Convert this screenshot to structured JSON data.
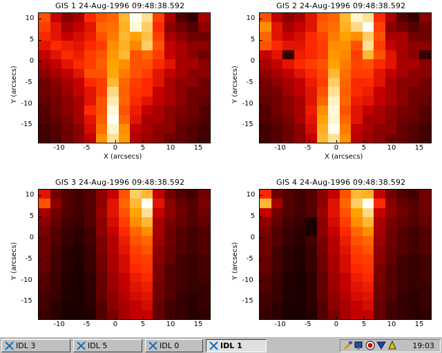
{
  "taskbar": {
    "buttons": [
      {
        "label": "IDL 3",
        "active": false
      },
      {
        "label": "IDL 5",
        "active": false
      },
      {
        "label": "IDL 0",
        "active": false
      },
      {
        "label": "IDL 1",
        "active": true
      }
    ],
    "clock": "19:03"
  },
  "panels": [
    {
      "title": "GIS 1 24-Aug-1996 09:48:38.592",
      "xlabel": "X (arcsecs)",
      "ylabel": "Y (arcsecs)",
      "xticks": [
        "-10",
        "-5",
        "0",
        "5",
        "10",
        "15"
      ],
      "yticks": [
        "10",
        "5",
        "0",
        "-5",
        "-10",
        "-15"
      ],
      "show_xlabel": true,
      "grid": [
        [
          0.55,
          0.35,
          0.25,
          0.3,
          0.45,
          0.55,
          0.6,
          0.8,
          0.98,
          0.9,
          0.5,
          0.3,
          0.15,
          0.08,
          0.3
        ],
        [
          0.5,
          0.4,
          0.3,
          0.35,
          0.4,
          0.6,
          0.62,
          0.78,
          0.96,
          0.85,
          0.45,
          0.25,
          0.2,
          0.15,
          0.25
        ],
        [
          0.45,
          0.4,
          0.35,
          0.38,
          0.42,
          0.55,
          0.65,
          0.8,
          0.75,
          0.82,
          0.5,
          0.3,
          0.25,
          0.2,
          0.2
        ],
        [
          0.4,
          0.45,
          0.42,
          0.4,
          0.45,
          0.5,
          0.7,
          0.78,
          0.68,
          0.85,
          0.55,
          0.35,
          0.3,
          0.25,
          0.25
        ],
        [
          0.35,
          0.4,
          0.45,
          0.42,
          0.5,
          0.55,
          0.72,
          0.8,
          0.55,
          0.6,
          0.5,
          0.35,
          0.3,
          0.25,
          0.2
        ],
        [
          0.3,
          0.35,
          0.4,
          0.45,
          0.5,
          0.58,
          0.75,
          0.7,
          0.55,
          0.55,
          0.45,
          0.4,
          0.3,
          0.3,
          0.25
        ],
        [
          0.25,
          0.3,
          0.35,
          0.4,
          0.55,
          0.55,
          0.76,
          0.65,
          0.55,
          0.5,
          0.4,
          0.35,
          0.3,
          0.25,
          0.25
        ],
        [
          0.2,
          0.25,
          0.3,
          0.35,
          0.45,
          0.5,
          0.8,
          0.6,
          0.5,
          0.45,
          0.4,
          0.3,
          0.25,
          0.25,
          0.2
        ],
        [
          0.2,
          0.22,
          0.28,
          0.35,
          0.4,
          0.5,
          0.88,
          0.58,
          0.48,
          0.45,
          0.35,
          0.3,
          0.25,
          0.2,
          0.2
        ],
        [
          0.18,
          0.2,
          0.25,
          0.3,
          0.4,
          0.55,
          0.92,
          0.6,
          0.45,
          0.4,
          0.35,
          0.3,
          0.25,
          0.2,
          0.18
        ],
        [
          0.15,
          0.2,
          0.25,
          0.3,
          0.45,
          0.55,
          0.96,
          0.55,
          0.42,
          0.35,
          0.3,
          0.25,
          0.22,
          0.2,
          0.15
        ],
        [
          0.15,
          0.18,
          0.22,
          0.3,
          0.4,
          0.58,
          0.99,
          0.6,
          0.4,
          0.3,
          0.3,
          0.25,
          0.2,
          0.18,
          0.15
        ],
        [
          0.12,
          0.15,
          0.2,
          0.25,
          0.38,
          0.62,
          0.95,
          0.7,
          0.35,
          0.3,
          0.25,
          0.25,
          0.18,
          0.15,
          0.12
        ],
        [
          0.12,
          0.15,
          0.2,
          0.25,
          0.35,
          0.7,
          0.9,
          0.72,
          0.32,
          0.28,
          0.25,
          0.2,
          0.18,
          0.15,
          0.12
        ]
      ]
    },
    {
      "title": "GIS 2 24-Aug-1996 09:48:38.592",
      "xlabel": "X (arcsecs)",
      "ylabel": "Y (arcsecs)",
      "xticks": [
        "-10",
        "-5",
        "0",
        "5",
        "10",
        "15"
      ],
      "yticks": [
        "10",
        "5",
        "0",
        "-5",
        "-10",
        "-15"
      ],
      "show_xlabel": true,
      "grid": [
        [
          0.55,
          0.35,
          0.25,
          0.3,
          0.4,
          0.55,
          0.6,
          0.8,
          0.95,
          0.9,
          0.45,
          0.3,
          0.15,
          0.1,
          0.25
        ],
        [
          0.7,
          0.4,
          0.3,
          0.35,
          0.4,
          0.58,
          0.62,
          0.78,
          0.88,
          0.99,
          0.5,
          0.25,
          0.2,
          0.15,
          0.2
        ],
        [
          0.6,
          0.4,
          0.35,
          0.38,
          0.45,
          0.52,
          0.65,
          0.75,
          0.7,
          0.85,
          0.55,
          0.3,
          0.3,
          0.2,
          0.2
        ],
        [
          0.55,
          0.45,
          0.4,
          0.4,
          0.45,
          0.5,
          0.7,
          0.7,
          0.55,
          0.9,
          0.5,
          0.35,
          0.3,
          0.25,
          0.25
        ],
        [
          0.35,
          0.4,
          0.1,
          0.42,
          0.45,
          0.5,
          0.72,
          0.68,
          0.5,
          0.8,
          0.55,
          0.4,
          0.3,
          0.25,
          0.1
        ],
        [
          0.3,
          0.35,
          0.4,
          0.45,
          0.5,
          0.55,
          0.75,
          0.65,
          0.52,
          0.55,
          0.45,
          0.4,
          0.3,
          0.3,
          0.25
        ],
        [
          0.25,
          0.3,
          0.35,
          0.4,
          0.45,
          0.52,
          0.8,
          0.62,
          0.5,
          0.5,
          0.4,
          0.35,
          0.3,
          0.25,
          0.25
        ],
        [
          0.22,
          0.25,
          0.3,
          0.35,
          0.42,
          0.5,
          0.85,
          0.6,
          0.45,
          0.45,
          0.4,
          0.3,
          0.25,
          0.25,
          0.2
        ],
        [
          0.2,
          0.22,
          0.28,
          0.35,
          0.4,
          0.55,
          0.9,
          0.58,
          0.45,
          0.42,
          0.35,
          0.3,
          0.25,
          0.2,
          0.2
        ],
        [
          0.18,
          0.2,
          0.25,
          0.3,
          0.4,
          0.6,
          0.94,
          0.6,
          0.42,
          0.4,
          0.35,
          0.3,
          0.25,
          0.2,
          0.18
        ],
        [
          0.15,
          0.2,
          0.25,
          0.3,
          0.42,
          0.7,
          0.96,
          0.55,
          0.4,
          0.35,
          0.3,
          0.25,
          0.22,
          0.2,
          0.15
        ],
        [
          0.15,
          0.18,
          0.22,
          0.3,
          0.4,
          0.75,
          0.95,
          0.6,
          0.4,
          0.3,
          0.3,
          0.25,
          0.2,
          0.18,
          0.15
        ],
        [
          0.12,
          0.15,
          0.2,
          0.25,
          0.38,
          0.78,
          0.98,
          0.65,
          0.35,
          0.3,
          0.25,
          0.25,
          0.18,
          0.15,
          0.12
        ],
        [
          0.12,
          0.15,
          0.2,
          0.25,
          0.35,
          0.8,
          0.9,
          0.7,
          0.32,
          0.28,
          0.25,
          0.2,
          0.18,
          0.15,
          0.12
        ]
      ]
    },
    {
      "title": "GIS 3 24-Aug-1996 09:48:38.592",
      "xlabel": "",
      "ylabel": "Y (arcsecs)",
      "xticks": [
        "-10",
        "-5",
        "0",
        "5",
        "10",
        "15"
      ],
      "yticks": [
        "10",
        "5",
        "0",
        "-5",
        "-10",
        "-15"
      ],
      "show_xlabel": false,
      "grid": [
        [
          0.4,
          0.2,
          0.15,
          0.12,
          0.15,
          0.25,
          0.35,
          0.55,
          0.85,
          0.8,
          0.35,
          0.2,
          0.15,
          0.12,
          0.2
        ],
        [
          0.55,
          0.25,
          0.15,
          0.12,
          0.15,
          0.25,
          0.4,
          0.6,
          0.8,
          0.99,
          0.4,
          0.25,
          0.18,
          0.15,
          0.22
        ],
        [
          0.3,
          0.2,
          0.15,
          0.12,
          0.15,
          0.28,
          0.4,
          0.55,
          0.75,
          0.9,
          0.35,
          0.25,
          0.2,
          0.15,
          0.2
        ],
        [
          0.25,
          0.18,
          0.12,
          0.1,
          0.15,
          0.25,
          0.38,
          0.5,
          0.7,
          0.8,
          0.3,
          0.22,
          0.18,
          0.15,
          0.18
        ],
        [
          0.22,
          0.15,
          0.1,
          0.08,
          0.12,
          0.25,
          0.35,
          0.45,
          0.6,
          0.7,
          0.3,
          0.2,
          0.15,
          0.12,
          0.15
        ],
        [
          0.2,
          0.15,
          0.1,
          0.08,
          0.12,
          0.22,
          0.32,
          0.42,
          0.55,
          0.6,
          0.28,
          0.2,
          0.15,
          0.12,
          0.15
        ],
        [
          0.2,
          0.12,
          0.08,
          0.06,
          0.1,
          0.22,
          0.32,
          0.4,
          0.5,
          0.55,
          0.25,
          0.18,
          0.15,
          0.12,
          0.15
        ],
        [
          0.18,
          0.12,
          0.08,
          0.06,
          0.1,
          0.2,
          0.3,
          0.38,
          0.48,
          0.5,
          0.25,
          0.18,
          0.12,
          0.1,
          0.12
        ],
        [
          0.18,
          0.12,
          0.08,
          0.05,
          0.1,
          0.2,
          0.3,
          0.38,
          0.45,
          0.48,
          0.22,
          0.15,
          0.12,
          0.1,
          0.12
        ],
        [
          0.15,
          0.1,
          0.06,
          0.05,
          0.08,
          0.18,
          0.28,
          0.35,
          0.42,
          0.45,
          0.22,
          0.15,
          0.12,
          0.1,
          0.12
        ],
        [
          0.15,
          0.1,
          0.06,
          0.05,
          0.08,
          0.18,
          0.28,
          0.35,
          0.4,
          0.42,
          0.2,
          0.15,
          0.12,
          0.1,
          0.1
        ],
        [
          0.12,
          0.1,
          0.06,
          0.05,
          0.08,
          0.18,
          0.25,
          0.32,
          0.38,
          0.4,
          0.2,
          0.15,
          0.1,
          0.08,
          0.1
        ],
        [
          0.12,
          0.08,
          0.05,
          0.05,
          0.08,
          0.15,
          0.25,
          0.3,
          0.35,
          0.38,
          0.18,
          0.12,
          0.1,
          0.08,
          0.1
        ],
        [
          0.1,
          0.08,
          0.05,
          0.05,
          0.06,
          0.15,
          0.22,
          0.3,
          0.35,
          0.35,
          0.18,
          0.12,
          0.1,
          0.08,
          0.08
        ]
      ]
    },
    {
      "title": "GIS 4 24-Aug-1996 09:48:38.592",
      "xlabel": "",
      "ylabel": "Y (arcsecs)",
      "xticks": [
        "-10",
        "-5",
        "0",
        "5",
        "10",
        "15"
      ],
      "yticks": [
        "10",
        "5",
        "0",
        "-5",
        "-10",
        "-15"
      ],
      "show_xlabel": false,
      "grid": [
        [
          0.45,
          0.2,
          0.15,
          0.12,
          0.15,
          0.25,
          0.35,
          0.55,
          0.8,
          0.78,
          0.35,
          0.2,
          0.15,
          0.12,
          0.2
        ],
        [
          0.8,
          0.3,
          0.15,
          0.12,
          0.15,
          0.25,
          0.4,
          0.6,
          0.85,
          0.99,
          0.45,
          0.25,
          0.18,
          0.15,
          0.2
        ],
        [
          0.35,
          0.2,
          0.15,
          0.12,
          0.15,
          0.28,
          0.4,
          0.55,
          0.75,
          0.88,
          0.35,
          0.25,
          0.2,
          0.15,
          0.2
        ],
        [
          0.25,
          0.18,
          0.12,
          0.1,
          0.05,
          0.25,
          0.38,
          0.5,
          0.7,
          0.8,
          0.3,
          0.22,
          0.18,
          0.15,
          0.18
        ],
        [
          0.22,
          0.15,
          0.1,
          0.08,
          0.05,
          0.25,
          0.35,
          0.45,
          0.6,
          0.7,
          0.3,
          0.2,
          0.15,
          0.12,
          0.15
        ],
        [
          0.2,
          0.15,
          0.1,
          0.08,
          0.12,
          0.22,
          0.32,
          0.42,
          0.55,
          0.6,
          0.28,
          0.2,
          0.15,
          0.12,
          0.15
        ],
        [
          0.2,
          0.12,
          0.08,
          0.06,
          0.1,
          0.22,
          0.32,
          0.4,
          0.5,
          0.55,
          0.25,
          0.18,
          0.15,
          0.12,
          0.15
        ],
        [
          0.18,
          0.12,
          0.08,
          0.06,
          0.1,
          0.2,
          0.3,
          0.38,
          0.48,
          0.5,
          0.25,
          0.18,
          0.12,
          0.1,
          0.12
        ],
        [
          0.18,
          0.12,
          0.08,
          0.05,
          0.1,
          0.2,
          0.3,
          0.38,
          0.45,
          0.48,
          0.22,
          0.15,
          0.12,
          0.1,
          0.12
        ],
        [
          0.15,
          0.1,
          0.06,
          0.05,
          0.08,
          0.18,
          0.28,
          0.35,
          0.42,
          0.45,
          0.22,
          0.15,
          0.12,
          0.1,
          0.12
        ],
        [
          0.15,
          0.1,
          0.06,
          0.05,
          0.08,
          0.18,
          0.28,
          0.35,
          0.4,
          0.42,
          0.2,
          0.15,
          0.12,
          0.1,
          0.1
        ],
        [
          0.12,
          0.1,
          0.06,
          0.05,
          0.08,
          0.18,
          0.25,
          0.32,
          0.38,
          0.4,
          0.2,
          0.15,
          0.1,
          0.08,
          0.1
        ],
        [
          0.12,
          0.08,
          0.05,
          0.05,
          0.08,
          0.15,
          0.25,
          0.3,
          0.35,
          0.38,
          0.18,
          0.12,
          0.1,
          0.08,
          0.1
        ],
        [
          0.1,
          0.08,
          0.05,
          0.05,
          0.06,
          0.15,
          0.22,
          0.3,
          0.35,
          0.35,
          0.18,
          0.12,
          0.1,
          0.08,
          0.08
        ]
      ]
    }
  ],
  "colors": {
    "background": "#ffffff",
    "taskbar": "#c0c0c0",
    "colormap": "red-temperature"
  }
}
